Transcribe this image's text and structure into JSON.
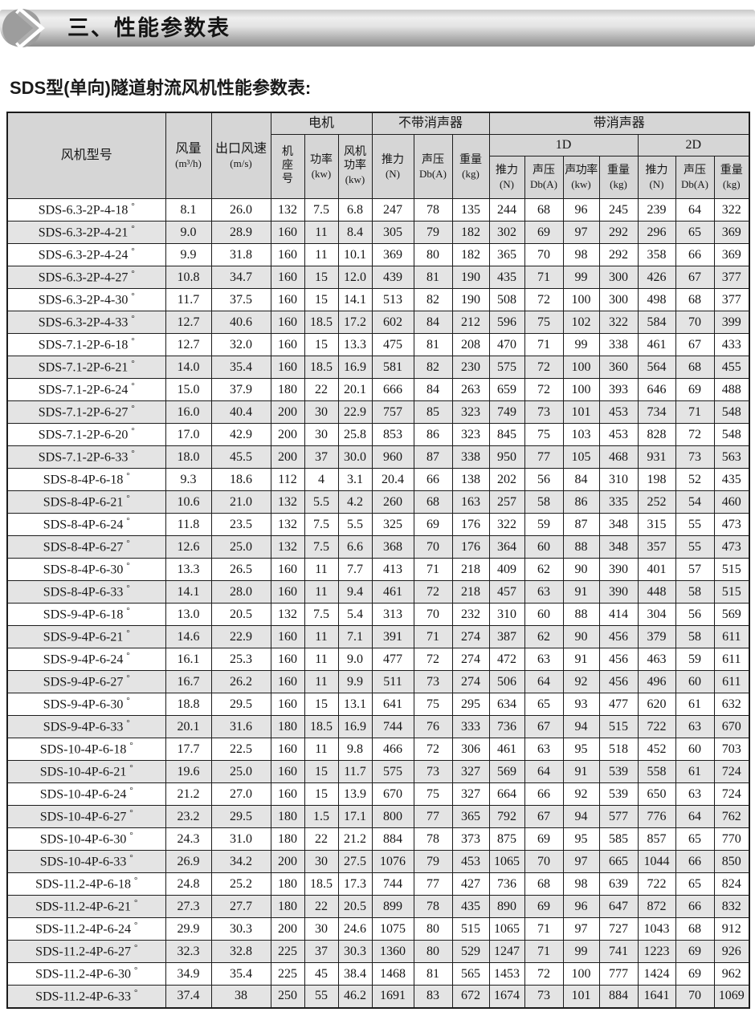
{
  "page": {
    "section_title": "三、性能参数表",
    "subtitle": "SDS型(单向)隧道射流风机性能参数表:"
  },
  "table": {
    "groups": {
      "motor": "电机",
      "without_silencer": "不带消声器",
      "with_silencer": "带消声器",
      "d1": "1D",
      "d2": "2D"
    },
    "columns": {
      "fan_model": "风机型号",
      "air_volume": {
        "label": "风量",
        "unit": "(m³/h)"
      },
      "outlet_speed": {
        "label": "出口风速",
        "unit": "(m/s)"
      },
      "frame_no": {
        "label": "机座号"
      },
      "power": {
        "label": "功率",
        "unit": "(kw)"
      },
      "fan_power": {
        "label": "风机功率",
        "unit": "(kw)"
      },
      "thrust": {
        "label": "推力",
        "unit": "(N)"
      },
      "sound_pressure": {
        "label": "声压",
        "unit": "Db(A)"
      },
      "sound_power": {
        "label": "声功率",
        "unit": "(kw)"
      },
      "weight": {
        "label": "重量",
        "unit": "(kg)"
      }
    },
    "rows": [
      [
        "SDS-6.3-2P-4-18°",
        "8.1",
        "26.0",
        "132",
        "7.5",
        "6.8",
        "247",
        "78",
        "135",
        "244",
        "68",
        "96",
        "245",
        "239",
        "64",
        "322"
      ],
      [
        "SDS-6.3-2P-4-21°",
        "9.0",
        "28.9",
        "160",
        "11",
        "8.4",
        "305",
        "79",
        "182",
        "302",
        "69",
        "97",
        "292",
        "296",
        "65",
        "369"
      ],
      [
        "SDS-6.3-2P-4-24°",
        "9.9",
        "31.8",
        "160",
        "11",
        "10.1",
        "369",
        "80",
        "182",
        "365",
        "70",
        "98",
        "292",
        "358",
        "66",
        "369"
      ],
      [
        "SDS-6.3-2P-4-27°",
        "10.8",
        "34.7",
        "160",
        "15",
        "12.0",
        "439",
        "81",
        "190",
        "435",
        "71",
        "99",
        "300",
        "426",
        "67",
        "377"
      ],
      [
        "SDS-6.3-2P-4-30°",
        "11.7",
        "37.5",
        "160",
        "15",
        "14.1",
        "513",
        "82",
        "190",
        "508",
        "72",
        "100",
        "300",
        "498",
        "68",
        "377"
      ],
      [
        "SDS-6.3-2P-4-33°",
        "12.7",
        "40.6",
        "160",
        "18.5",
        "17.2",
        "602",
        "84",
        "212",
        "596",
        "75",
        "102",
        "322",
        "584",
        "70",
        "399"
      ],
      [
        "SDS-7.1-2P-6-18°",
        "12.7",
        "32.0",
        "160",
        "15",
        "13.3",
        "475",
        "81",
        "208",
        "470",
        "71",
        "99",
        "338",
        "461",
        "67",
        "433"
      ],
      [
        "SDS-7.1-2P-6-21°",
        "14.0",
        "35.4",
        "160",
        "18.5",
        "16.9",
        "581",
        "82",
        "230",
        "575",
        "72",
        "100",
        "360",
        "564",
        "68",
        "455"
      ],
      [
        "SDS-7.1-2P-6-24°",
        "15.0",
        "37.9",
        "180",
        "22",
        "20.1",
        "666",
        "84",
        "263",
        "659",
        "72",
        "100",
        "393",
        "646",
        "69",
        "488"
      ],
      [
        "SDS-7.1-2P-6-27°",
        "16.0",
        "40.4",
        "200",
        "30",
        "22.9",
        "757",
        "85",
        "323",
        "749",
        "73",
        "101",
        "453",
        "734",
        "71",
        "548"
      ],
      [
        "SDS-7.1-2P-6-20°",
        "17.0",
        "42.9",
        "200",
        "30",
        "25.8",
        "853",
        "86",
        "323",
        "845",
        "75",
        "103",
        "453",
        "828",
        "72",
        "548"
      ],
      [
        "SDS-7.1-2P-6-33°",
        "18.0",
        "45.5",
        "200",
        "37",
        "30.0",
        "960",
        "87",
        "338",
        "950",
        "77",
        "105",
        "468",
        "931",
        "73",
        "563"
      ],
      [
        "SDS-8-4P-6-18°",
        "9.3",
        "18.6",
        "112",
        "4",
        "3.1",
        "20.4",
        "66",
        "138",
        "202",
        "56",
        "84",
        "310",
        "198",
        "52",
        "435"
      ],
      [
        "SDS-8-4P-6-21°",
        "10.6",
        "21.0",
        "132",
        "5.5",
        "4.2",
        "260",
        "68",
        "163",
        "257",
        "58",
        "86",
        "335",
        "252",
        "54",
        "460"
      ],
      [
        "SDS-8-4P-6-24°",
        "11.8",
        "23.5",
        "132",
        "7.5",
        "5.5",
        "325",
        "69",
        "176",
        "322",
        "59",
        "87",
        "348",
        "315",
        "55",
        "473"
      ],
      [
        "SDS-8-4P-6-27°",
        "12.6",
        "25.0",
        "132",
        "7.5",
        "6.6",
        "368",
        "70",
        "176",
        "364",
        "60",
        "88",
        "348",
        "357",
        "55",
        "473"
      ],
      [
        "SDS-8-4P-6-30°",
        "13.3",
        "26.5",
        "160",
        "11",
        "7.7",
        "413",
        "71",
        "218",
        "409",
        "62",
        "90",
        "390",
        "401",
        "57",
        "515"
      ],
      [
        "SDS-8-4P-6-33°",
        "14.1",
        "28.0",
        "160",
        "11",
        "9.4",
        "461",
        "72",
        "218",
        "457",
        "63",
        "91",
        "390",
        "448",
        "58",
        "515"
      ],
      [
        "SDS-9-4P-6-18°",
        "13.0",
        "20.5",
        "132",
        "7.5",
        "5.4",
        "313",
        "70",
        "232",
        "310",
        "60",
        "88",
        "414",
        "304",
        "56",
        "569"
      ],
      [
        "SDS-9-4P-6-21°",
        "14.6",
        "22.9",
        "160",
        "11",
        "7.1",
        "391",
        "71",
        "274",
        "387",
        "62",
        "90",
        "456",
        "379",
        "58",
        "611"
      ],
      [
        "SDS-9-4P-6-24°",
        "16.1",
        "25.3",
        "160",
        "11",
        "9.0",
        "477",
        "72",
        "274",
        "472",
        "63",
        "91",
        "456",
        "463",
        "59",
        "611"
      ],
      [
        "SDS-9-4P-6-27°",
        "16.7",
        "26.2",
        "160",
        "11",
        "9.9",
        "511",
        "73",
        "274",
        "506",
        "64",
        "92",
        "456",
        "496",
        "60",
        "611"
      ],
      [
        "SDS-9-4P-6-30°",
        "18.8",
        "29.5",
        "160",
        "15",
        "13.1",
        "641",
        "75",
        "295",
        "634",
        "65",
        "93",
        "477",
        "620",
        "61",
        "632"
      ],
      [
        "SDS-9-4P-6-33°",
        "20.1",
        "31.6",
        "180",
        "18.5",
        "16.9",
        "744",
        "76",
        "333",
        "736",
        "67",
        "94",
        "515",
        "722",
        "63",
        "670"
      ],
      [
        "SDS-10-4P-6-18°",
        "17.7",
        "22.5",
        "160",
        "11",
        "9.8",
        "466",
        "72",
        "306",
        "461",
        "63",
        "95",
        "518",
        "452",
        "60",
        "703"
      ],
      [
        "SDS-10-4P-6-21°",
        "19.6",
        "25.0",
        "160",
        "15",
        "11.7",
        "575",
        "73",
        "327",
        "569",
        "64",
        "91",
        "539",
        "558",
        "61",
        "724"
      ],
      [
        "SDS-10-4P-6-24°",
        "21.2",
        "27.0",
        "160",
        "15",
        "13.9",
        "670",
        "75",
        "327",
        "664",
        "66",
        "92",
        "539",
        "650",
        "63",
        "724"
      ],
      [
        "SDS-10-4P-6-27°",
        "23.2",
        "29.5",
        "180",
        "1.5",
        "17.1",
        "800",
        "77",
        "365",
        "792",
        "67",
        "94",
        "577",
        "776",
        "64",
        "762"
      ],
      [
        "SDS-10-4P-6-30°",
        "24.3",
        "31.0",
        "180",
        "22",
        "21.2",
        "884",
        "78",
        "373",
        "875",
        "69",
        "95",
        "585",
        "857",
        "65",
        "770"
      ],
      [
        "SDS-10-4P-6-33°",
        "26.9",
        "34.2",
        "200",
        "30",
        "27.5",
        "1076",
        "79",
        "453",
        "1065",
        "70",
        "97",
        "665",
        "1044",
        "66",
        "850"
      ],
      [
        "SDS-11.2-4P-6-18°",
        "24.8",
        "25.2",
        "180",
        "18.5",
        "17.3",
        "744",
        "77",
        "427",
        "736",
        "68",
        "98",
        "639",
        "722",
        "65",
        "824"
      ],
      [
        "SDS-11.2-4P-6-21°",
        "27.3",
        "27.7",
        "180",
        "22",
        "20.5",
        "899",
        "78",
        "435",
        "890",
        "69",
        "96",
        "647",
        "872",
        "66",
        "832"
      ],
      [
        "SDS-11.2-4P-6-24°",
        "29.9",
        "30.3",
        "200",
        "30",
        "24.6",
        "1075",
        "80",
        "515",
        "1065",
        "71",
        "97",
        "727",
        "1043",
        "68",
        "912"
      ],
      [
        "SDS-11.2-4P-6-27°",
        "32.3",
        "32.8",
        "225",
        "37",
        "30.3",
        "1360",
        "80",
        "529",
        "1247",
        "71",
        "99",
        "741",
        "1223",
        "69",
        "926"
      ],
      [
        "SDS-11.2-4P-6-30°",
        "34.9",
        "35.4",
        "225",
        "45",
        "38.4",
        "1468",
        "81",
        "565",
        "1453",
        "72",
        "100",
        "777",
        "1424",
        "69",
        "962"
      ],
      [
        "SDS-11.2-4P-6-33°",
        "37.4",
        "38",
        "250",
        "55",
        "46.2",
        "1691",
        "83",
        "672",
        "1674",
        "73",
        "101",
        "884",
        "1641",
        "70",
        "1069"
      ]
    ]
  }
}
